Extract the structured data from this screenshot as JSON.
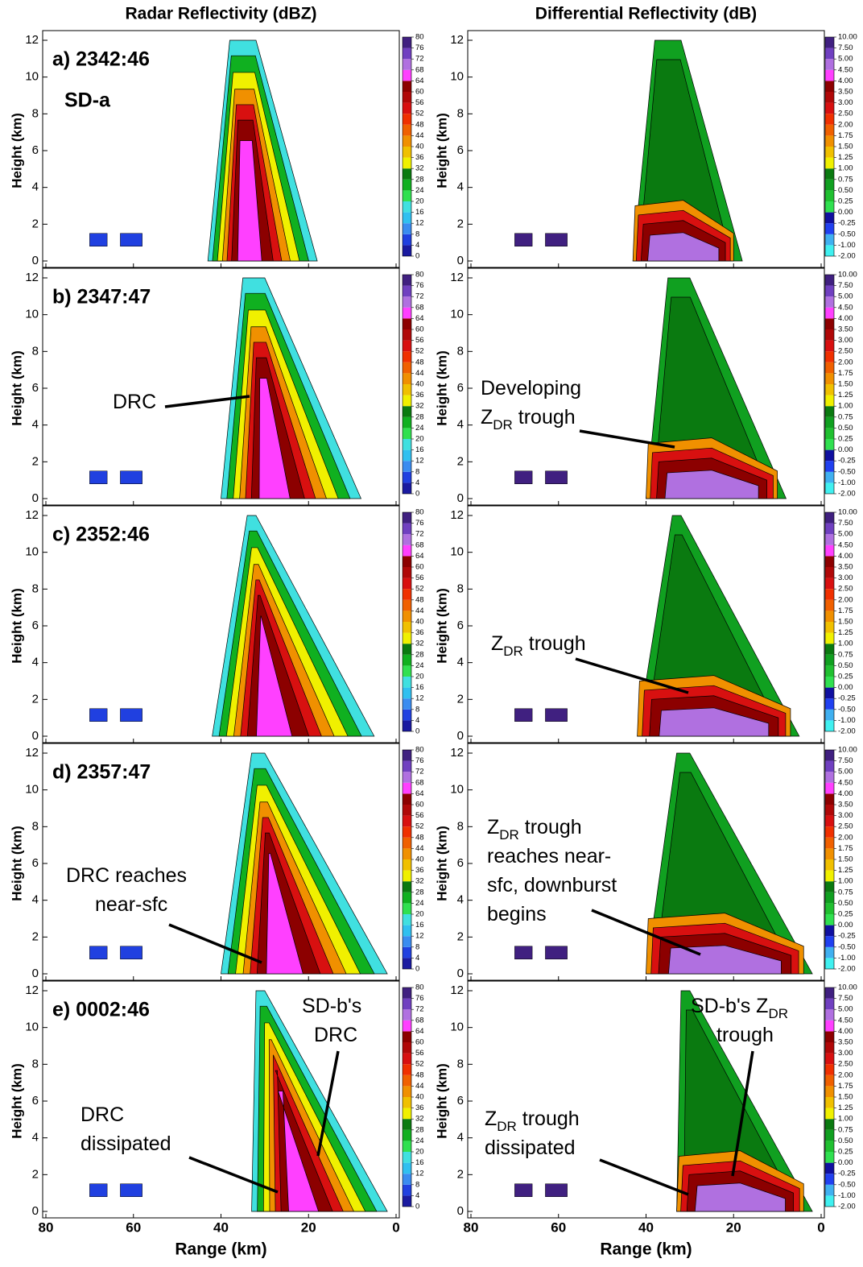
{
  "chart_data": {
    "type": "rhi",
    "xlabel": "Range (km)",
    "ylabel": "Height (km)",
    "xlim": [
      80,
      0
    ],
    "ylim": [
      0,
      12
    ],
    "xticks": [
      80,
      60,
      40,
      20,
      0
    ],
    "yticks": [
      0,
      2,
      4,
      6,
      8,
      10,
      12
    ],
    "columns": [
      {
        "title": "Radar Reflectivity (dBZ)",
        "colorbar_ticks": [
          0,
          4,
          8,
          12,
          16,
          20,
          24,
          28,
          32,
          36,
          40,
          44,
          48,
          52,
          56,
          60,
          64,
          68,
          72,
          76,
          80
        ],
        "colors": [
          "#1a1aa0",
          "#2040e0",
          "#3a8cf0",
          "#30c0f0",
          "#40e0e0",
          "#30e050",
          "#10b020",
          "#0a7a10",
          "#f0f000",
          "#f0c000",
          "#f09000",
          "#f06000",
          "#f03000",
          "#d81010",
          "#b00808",
          "#8c0000",
          "#ff40ff",
          "#b070e0",
          "#7040c0",
          "#402080"
        ]
      },
      {
        "title": "Differential Reflectivity (dB)",
        "colorbar_ticks": [
          {
            "value": -2,
            "label": "-2.00"
          },
          {
            "value": -1,
            "label": "-1.00"
          },
          {
            "value": -0.5,
            "label": "-0.50"
          },
          -0.25,
          {
            "value": 0,
            "label": "0.00"
          },
          0.25,
          {
            "value": 0.5,
            "label": "0.50"
          },
          0.75,
          {
            "value": 1,
            "label": "1.00"
          },
          1.25,
          {
            "value": 1.5,
            "label": "1.50"
          },
          1.75,
          {
            "value": 2,
            "label": "2.00"
          },
          {
            "value": 2.5,
            "label": "2.50"
          },
          {
            "value": 3,
            "label": "3.00"
          },
          {
            "value": 3.5,
            "label": "3.50"
          },
          {
            "value": 4,
            "label": "4.00"
          },
          {
            "value": 4.5,
            "label": "4.50"
          },
          {
            "value": 5,
            "label": "5.00"
          },
          {
            "value": 7.5,
            "label": "7.50"
          },
          {
            "value": 10,
            "label": "10.00"
          }
        ],
        "colors": [
          "#40f0f0",
          "#40b0f0",
          "#2040f0",
          "#1010a0",
          "#30e050",
          "#20c030",
          "#10a020",
          "#0a7a10",
          "#f0f000",
          "#f0c000",
          "#f09000",
          "#f06000",
          "#f03000",
          "#d81010",
          "#b00808",
          "#8c0000",
          "#ff40ff",
          "#b070e0",
          "#7040c0",
          "#402080"
        ]
      }
    ],
    "rows": [
      {
        "label": "a) 2342:46",
        "storm_label": "SD-a",
        "notes": [
          [],
          []
        ]
      },
      {
        "label": "b) 2347:47",
        "notes": [
          [
            [
              [
                "DRC"
              ]
            ]
          ],
          [
            [
              [
                "Developing"
              ],
              [
                "Z",
                {
                  "sub": "DR"
                },
                " trough"
              ]
            ]
          ]
        ]
      },
      {
        "label": "c) 2352:46",
        "notes": [
          [],
          [
            [
              [
                "Z",
                {
                  "sub": "DR"
                },
                " trough"
              ]
            ]
          ]
        ]
      },
      {
        "label": "d) 2357:47",
        "notes": [
          [
            [
              [
                "DRC reaches"
              ],
              [
                "near-sfc"
              ]
            ]
          ],
          [
            [
              [
                "Z",
                {
                  "sub": "DR"
                },
                " trough"
              ],
              [
                "reaches near-"
              ],
              [
                "sfc, downburst"
              ],
              [
                "begins"
              ]
            ]
          ]
        ]
      },
      {
        "label": "e) 0002:46",
        "notes": [
          [
            [
              [
                "DRC"
              ],
              [
                "dissipated"
              ]
            ],
            [
              [
                "SD-b's"
              ],
              [
                "DRC"
              ]
            ]
          ],
          [
            [
              [
                "SD-b's Z",
                {
                  "sub": "DR"
                }
              ],
              [
                "trough"
              ]
            ],
            [
              [
                "Z",
                {
                  "sub": "DR"
                },
                " trough"
              ],
              [
                "dissipated"
              ]
            ]
          ]
        ]
      }
    ]
  }
}
